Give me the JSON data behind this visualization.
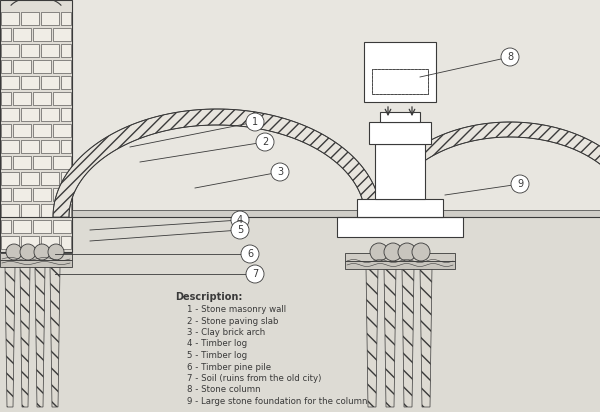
{
  "bg_color": "#e8e6e0",
  "line_color": "#3a3a3a",
  "description_title": "Description:",
  "description_items": [
    "1 - Stone masonry wall",
    "2 - Stone paving slab",
    "3 - Clay brick arch",
    "4 - Timber log",
    "5 - Timber log",
    "6 - Timber pine pile",
    "7 - Soil (ruins from the old city)",
    "8 - Stone column",
    "9 - Large stone foundation for the column"
  ]
}
